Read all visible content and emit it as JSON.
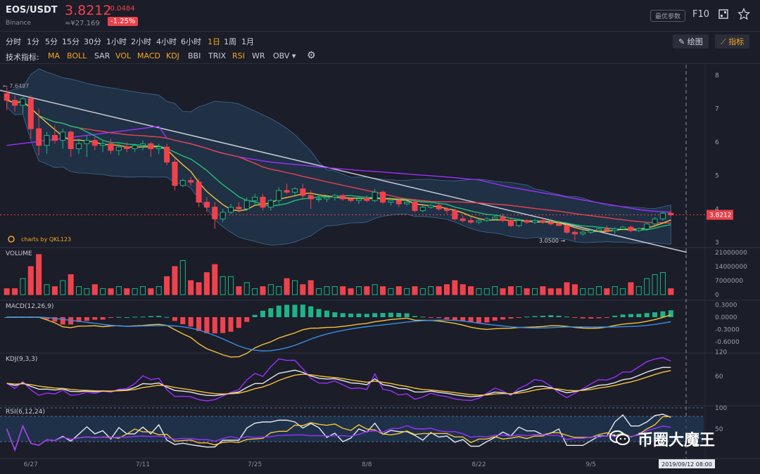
{
  "header": {
    "pair": "EOS/USDT",
    "exchange": "Binance",
    "price": "3.8212",
    "change": "-0.0484",
    "cny": "≈¥27.169",
    "change_pct": "-1.25%",
    "param_button": "最优参数",
    "f10": "F10"
  },
  "timeframes": [
    "分时",
    "1分",
    "5分",
    "15分",
    "30分",
    "1小时",
    "2小时",
    "4小时",
    "6小时",
    "1日",
    "1周",
    "1月"
  ],
  "active_timeframe": "1日",
  "toolbar": {
    "draw_label": "绘图",
    "indicator_label": "指标"
  },
  "indicator_bar": {
    "label": "技术指标:",
    "items": [
      {
        "name": "MA",
        "on": true
      },
      {
        "name": "BOLL",
        "on": true
      },
      {
        "name": "SAR",
        "on": false
      },
      {
        "name": "VOL",
        "on": true
      },
      {
        "name": "MACD",
        "on": true
      },
      {
        "name": "KDJ",
        "on": true
      },
      {
        "name": "BBI",
        "on": false
      },
      {
        "name": "TRIX",
        "on": false
      },
      {
        "name": "RSI",
        "on": true
      },
      {
        "name": "WR",
        "on": false
      },
      {
        "name": "OBV ▾",
        "on": false
      }
    ]
  },
  "watermark": "币圈大魔王",
  "colors": {
    "up": "#1fb388",
    "down": "#f0424d",
    "ma5": "#f5c23a",
    "ma10": "#21c17a",
    "ma30": "#e8434c",
    "ma60": "#9b30ff",
    "trend": "#c8cad2"
  },
  "chart_data": {
    "type": "candlestick",
    "x_labels": [
      "6/27",
      "7/11",
      "7/25",
      "8/8",
      "8/22",
      "9/5"
    ],
    "price_axis": {
      "ticks": [
        8,
        7,
        6,
        5,
        4,
        3
      ],
      "current": "3.8212",
      "high_label": "7.6497",
      "low_label": "3.0500"
    },
    "credit": "charts by QKL123",
    "crosshair_time": "2019/09/12 08:00",
    "panes": {
      "volume": {
        "title": "VOLUME",
        "ticks": [
          "21000000",
          "14000000",
          "7000000",
          "0"
        ]
      },
      "macd": {
        "title": "MACD(12,26,9)",
        "ticks": [
          "0.3000",
          "0.0000",
          "-0.3000",
          "-0.6000"
        ]
      },
      "kdj": {
        "title": "KDJ(9,3,3)",
        "ticks": [
          "120",
          "60"
        ]
      },
      "rsi": {
        "title": "RSI(6,12,24)",
        "ticks": [
          "100",
          "50"
        ]
      }
    },
    "candles": [
      [
        7.45,
        7.65,
        6.95,
        7.25
      ],
      [
        7.25,
        7.4,
        6.9,
        7.1
      ],
      [
        7.1,
        7.35,
        6.85,
        7.3
      ],
      [
        7.3,
        7.4,
        6.1,
        6.4
      ],
      [
        6.4,
        7.0,
        5.6,
        5.9
      ],
      [
        5.9,
        6.3,
        5.65,
        6.2
      ],
      [
        6.2,
        6.5,
        5.95,
        6.05
      ],
      [
        6.05,
        6.4,
        5.8,
        6.3
      ],
      [
        6.3,
        6.35,
        5.55,
        5.8
      ],
      [
        5.8,
        6.1,
        5.65,
        5.95
      ],
      [
        5.95,
        6.2,
        5.55,
        6.05
      ],
      [
        6.05,
        6.15,
        5.75,
        5.9
      ],
      [
        5.9,
        6.05,
        5.7,
        5.95
      ],
      [
        5.95,
        6.1,
        5.65,
        5.75
      ],
      [
        5.75,
        5.95,
        5.6,
        5.85
      ],
      [
        5.85,
        6.0,
        5.7,
        5.8
      ],
      [
        5.8,
        5.95,
        5.7,
        5.9
      ],
      [
        5.9,
        6.05,
        5.75,
        5.95
      ],
      [
        5.95,
        6.0,
        5.55,
        5.8
      ],
      [
        5.8,
        5.95,
        5.65,
        5.85
      ],
      [
        5.85,
        5.95,
        5.3,
        5.4
      ],
      [
        5.4,
        5.5,
        4.55,
        4.7
      ],
      [
        4.7,
        4.9,
        4.65,
        4.85
      ],
      [
        4.85,
        4.95,
        4.7,
        4.8
      ],
      [
        4.8,
        4.9,
        4.05,
        4.2
      ],
      [
        4.2,
        4.35,
        3.9,
        4.05
      ],
      [
        4.05,
        4.2,
        3.4,
        3.7
      ],
      [
        3.7,
        4.0,
        3.6,
        3.9
      ],
      [
        3.9,
        4.15,
        3.85,
        4.05
      ],
      [
        4.05,
        4.2,
        3.9,
        4.0
      ],
      [
        4.0,
        4.35,
        3.95,
        4.25
      ],
      [
        4.25,
        4.45,
        4.1,
        4.35
      ],
      [
        4.35,
        4.45,
        3.95,
        4.05
      ],
      [
        4.05,
        4.3,
        3.95,
        4.25
      ],
      [
        4.25,
        4.65,
        4.15,
        4.55
      ],
      [
        4.55,
        4.75,
        4.45,
        4.5
      ],
      [
        4.5,
        4.65,
        4.4,
        4.6
      ],
      [
        4.6,
        4.75,
        4.3,
        4.4
      ],
      [
        4.4,
        4.55,
        4.0,
        4.3
      ],
      [
        4.3,
        4.45,
        4.2,
        4.3
      ],
      [
        4.3,
        4.4,
        4.2,
        4.35
      ],
      [
        4.35,
        4.45,
        4.25,
        4.4
      ],
      [
        4.4,
        4.45,
        4.25,
        4.3
      ],
      [
        4.3,
        4.35,
        4.2,
        4.25
      ],
      [
        4.25,
        4.35,
        4.15,
        4.3
      ],
      [
        4.3,
        4.4,
        4.2,
        4.25
      ],
      [
        4.25,
        4.6,
        4.2,
        4.5
      ],
      [
        4.5,
        4.55,
        4.15,
        4.2
      ],
      [
        4.2,
        4.3,
        4.1,
        4.25
      ],
      [
        4.25,
        4.3,
        4.05,
        4.15
      ],
      [
        4.15,
        4.25,
        4.1,
        4.2
      ],
      [
        4.2,
        4.3,
        3.9,
        3.95
      ],
      [
        3.95,
        4.1,
        3.9,
        4.05
      ],
      [
        4.05,
        4.15,
        4.0,
        4.1
      ],
      [
        4.1,
        4.15,
        3.95,
        4.0
      ],
      [
        4.0,
        4.05,
        3.85,
        3.95
      ],
      [
        3.95,
        4.0,
        3.65,
        3.7
      ],
      [
        3.7,
        3.8,
        3.6,
        3.65
      ],
      [
        3.65,
        3.75,
        3.55,
        3.6
      ],
      [
        3.6,
        3.7,
        3.55,
        3.65
      ],
      [
        3.65,
        3.75,
        3.6,
        3.7
      ],
      [
        3.7,
        3.8,
        3.65,
        3.75
      ],
      [
        3.75,
        3.85,
        3.6,
        3.65
      ],
      [
        3.65,
        3.75,
        3.45,
        3.5
      ],
      [
        3.5,
        3.7,
        3.45,
        3.65
      ],
      [
        3.65,
        3.7,
        3.55,
        3.6
      ],
      [
        3.6,
        3.7,
        3.55,
        3.65
      ],
      [
        3.65,
        3.75,
        3.55,
        3.6
      ],
      [
        3.6,
        3.7,
        3.5,
        3.55
      ],
      [
        3.55,
        3.65,
        3.5,
        3.5
      ],
      [
        3.5,
        3.55,
        3.25,
        3.3
      ],
      [
        3.3,
        3.35,
        3.05,
        3.25
      ],
      [
        3.25,
        3.35,
        3.2,
        3.3
      ],
      [
        3.3,
        3.4,
        3.25,
        3.35
      ],
      [
        3.35,
        3.45,
        3.3,
        3.4
      ],
      [
        3.4,
        3.5,
        3.3,
        3.35
      ],
      [
        3.35,
        3.45,
        3.25,
        3.4
      ],
      [
        3.4,
        3.5,
        3.35,
        3.45
      ],
      [
        3.45,
        3.5,
        3.3,
        3.35
      ],
      [
        3.35,
        3.45,
        3.3,
        3.4
      ],
      [
        3.4,
        3.6,
        3.35,
        3.55
      ],
      [
        3.55,
        3.75,
        3.5,
        3.7
      ],
      [
        3.7,
        3.92,
        3.65,
        3.87
      ],
      [
        3.87,
        3.95,
        3.78,
        3.82
      ]
    ],
    "volumes": [
      3,
      3,
      8,
      14,
      20,
      5,
      4,
      7,
      10,
      4,
      3,
      5,
      3,
      3,
      4,
      3,
      3,
      4,
      3,
      4,
      9,
      14,
      17,
      7,
      6,
      11,
      15,
      9,
      9,
      4,
      6,
      3,
      4,
      5,
      4,
      8,
      7,
      5,
      7,
      3,
      4,
      4,
      4,
      3,
      4,
      4,
      5,
      4,
      3,
      4,
      3,
      4,
      3,
      4,
      4,
      5,
      7,
      5,
      4,
      3,
      3,
      4,
      3,
      4,
      4,
      3,
      3,
      4,
      3,
      3,
      6,
      5,
      3,
      3,
      4,
      3,
      4,
      3,
      6,
      4,
      8,
      10,
      11,
      3
    ]
  }
}
